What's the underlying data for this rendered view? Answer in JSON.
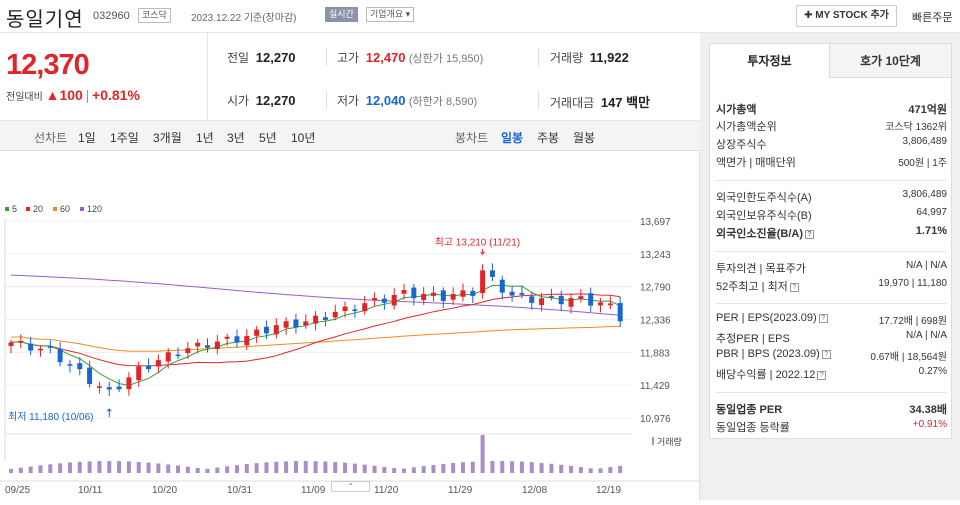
{
  "header": {
    "name": "동일기연",
    "code": "032960",
    "market_badge": "코스닥",
    "date_text": "2023.12.22  기준(장마감)",
    "realtime_badge": "실시간",
    "company_badge": "기업개요 ▾",
    "mystock_label": "✚ MY STOCK 추가",
    "quick_order": "빠른주문"
  },
  "price": {
    "current": "12,370",
    "change_label": "전일대비",
    "change_value": "▲100",
    "change_rate": "+0.81%"
  },
  "quotes": {
    "prev_close_label": "전일",
    "prev_close": "12,270",
    "high_label": "고가",
    "high": "12,470",
    "upper_limit": "(상한가 15,950)",
    "volume_label": "거래량",
    "volume": "11,922",
    "open_label": "시가",
    "open": "12,270",
    "low_label": "저가",
    "low": "12,040",
    "lower_limit": "(하한가 8,590)",
    "amount_label": "거래대금",
    "amount": "147 백만"
  },
  "periods": {
    "line_label": "선차트",
    "items": [
      "1일",
      "1주일",
      "3개월",
      "1년",
      "3년",
      "5년",
      "10년"
    ],
    "candle_label": "봉차트",
    "candle_items": [
      "일봉",
      "주봉",
      "월봉"
    ],
    "active_candle": "일봉"
  },
  "chart_data": {
    "type": "candlestick",
    "legend": [
      {
        "name": "5",
        "color": "#3a9e3a"
      },
      {
        "name": "20",
        "color": "#e0252a"
      },
      {
        "name": "60",
        "color": "#f08a24"
      },
      {
        "name": "120",
        "color": "#9b5fc0"
      }
    ],
    "y_ticks": [
      13697,
      13243,
      12790,
      12336,
      11883,
      11429,
      10976
    ],
    "ylim": [
      10976,
      13697
    ],
    "x_ticks": [
      "09/25",
      "10/11",
      "10/20",
      "10/31",
      "11/09",
      "11/20",
      "11/29",
      "12/08",
      "12/19"
    ],
    "max_annotation": "최고 13,210 (11/21)",
    "min_annotation": "최저 11,180 (10/06)",
    "volume_label": "거래량",
    "up_color": "#e0252a",
    "down_color": "#1a66cc",
    "volume_color": "#a98dc6"
  },
  "invest": {
    "tab_active": "투자정보",
    "tab_other": "호가 10단계",
    "rows": [
      {
        "label": "시가총액",
        "value": "471억원"
      },
      {
        "label": "시가총액순위",
        "value": "코스닥 1362위"
      },
      {
        "label": "상장주식수",
        "value": "3,806,489"
      },
      {
        "label": "액면가 | 매매단위",
        "value": "500원 | 1주"
      },
      {
        "label": "외국인한도주식수(A)",
        "value": "3,806,489"
      },
      {
        "label": "외국인보유주식수(B)",
        "value": "64,997"
      },
      {
        "label": "외국인소진율(B/A)",
        "value": "1.71%"
      },
      {
        "label": "투자의견 | 목표주가",
        "value": "N/A | N/A"
      },
      {
        "label": "52주최고 | 최저",
        "value": "19,970 | 11,180"
      },
      {
        "label": "PER | EPS(2023.09)",
        "value": "17.72배 | 698원"
      },
      {
        "label": "추정PER | EPS",
        "value": "N/A | N/A"
      },
      {
        "label": "PBR | BPS (2023.09)",
        "value": "0.67배 | 18,564원"
      },
      {
        "label": "배당수익률 | 2022.12",
        "value": "0.27%"
      },
      {
        "label": "동일업종 PER",
        "value": "34.38배"
      },
      {
        "label": "동일업종 등락률",
        "value": "+0.91%"
      }
    ]
  }
}
